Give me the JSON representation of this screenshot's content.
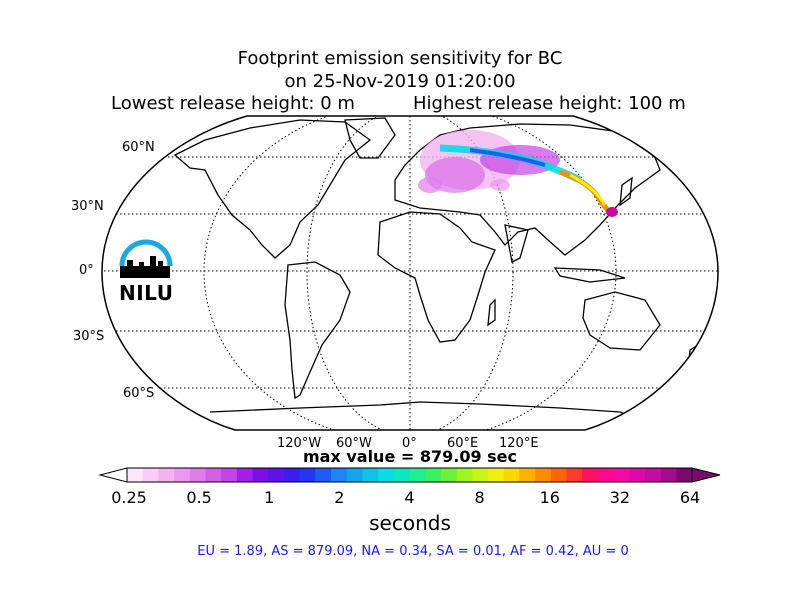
{
  "title": {
    "line1": "Footprint emission sensitivity for BC",
    "line2": "on 25-Nov-2019 01:20:00",
    "lowest_release": "Lowest release height: 0 m",
    "highest_release": "Highest release height: 100 m"
  },
  "map": {
    "projection": "Robinson",
    "graticule": "dotted",
    "lat_labels": [
      "60°N",
      "30°N",
      "0°",
      "30°S",
      "60°S"
    ],
    "lon_labels": [
      "120°W",
      "60°W",
      "0°",
      "60°E",
      "120°E"
    ],
    "plume_region": "Europe to East Asia"
  },
  "logo": {
    "text": "NILU",
    "arc_color": "#1ba7e0"
  },
  "max_value": "max value = 879.09 sec",
  "colorbar": {
    "ticks": [
      "0.25",
      "0.5",
      "1",
      "2",
      "4",
      "8",
      "16",
      "32",
      "64"
    ],
    "unit": "seconds",
    "colors": [
      "#fde6fa",
      "#f9cdf6",
      "#f3b3f1",
      "#eb97ee",
      "#e07ce9",
      "#d35fe6",
      "#c444e6",
      "#a21fe8",
      "#7d0fe6",
      "#5d12e8",
      "#3b1cf0",
      "#2436f5",
      "#1f5cf5",
      "#1f83f5",
      "#12a4ec",
      "#0cc3e8",
      "#08dde0",
      "#0ae8bd",
      "#1ef08f",
      "#3af066",
      "#6df03a",
      "#9ff51c",
      "#c9f512",
      "#f0f010",
      "#ffd600",
      "#ffb100",
      "#ff8c00",
      "#ff6600",
      "#ff3b30",
      "#ff1060",
      "#ff0a8c",
      "#f50aa6",
      "#e00aa8",
      "#c70aa0",
      "#a80a8c",
      "#7a0a6e"
    ]
  },
  "regions": "EU = 1.89,  AS = 879.09,  NA = 0.34,  SA = 0.01,  AF = 0.42,  AU = 0"
}
